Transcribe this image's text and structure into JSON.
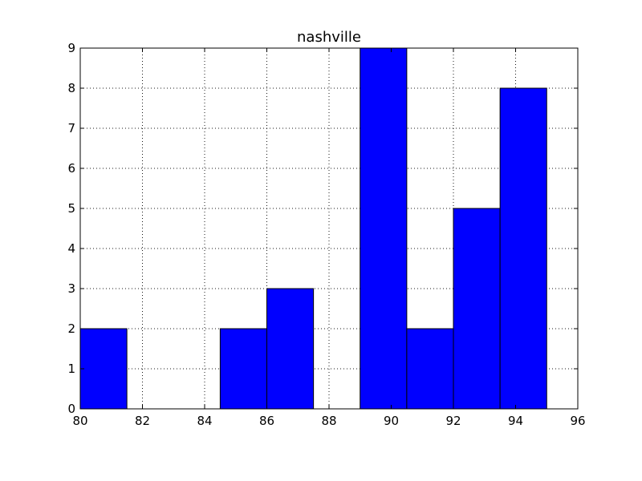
{
  "chart_data": {
    "type": "bar",
    "title": "nashville",
    "xlabel": "",
    "ylabel": "",
    "xlim": [
      80,
      96
    ],
    "ylim": [
      0,
      9
    ],
    "xticks": [
      80,
      82,
      84,
      86,
      88,
      90,
      92,
      94,
      96
    ],
    "yticks": [
      0,
      1,
      2,
      3,
      4,
      5,
      6,
      7,
      8,
      9
    ],
    "grid": true,
    "colors": {
      "bar_fill": "#0000ff",
      "bar_edge": "#000000",
      "axis": "#000000",
      "background": "#ffffff"
    },
    "bins": [
      {
        "x0": 80.0,
        "x1": 81.5,
        "value": 2
      },
      {
        "x0": 81.5,
        "x1": 83.0,
        "value": 0
      },
      {
        "x0": 83.0,
        "x1": 84.5,
        "value": 0
      },
      {
        "x0": 84.5,
        "x1": 86.0,
        "value": 2
      },
      {
        "x0": 86.0,
        "x1": 87.5,
        "value": 3
      },
      {
        "x0": 87.5,
        "x1": 89.0,
        "value": 0
      },
      {
        "x0": 89.0,
        "x1": 90.5,
        "value": 9
      },
      {
        "x0": 90.5,
        "x1": 92.0,
        "value": 2
      },
      {
        "x0": 92.0,
        "x1": 93.5,
        "value": 5
      },
      {
        "x0": 93.5,
        "x1": 95.0,
        "value": 8
      }
    ]
  }
}
